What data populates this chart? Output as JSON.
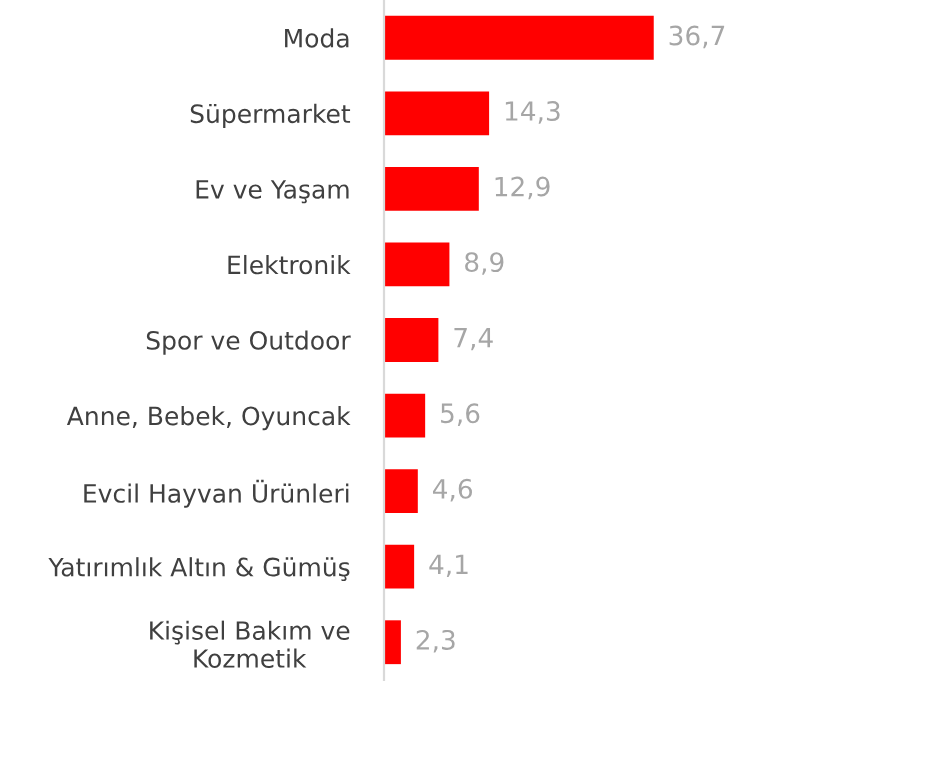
{
  "chart_data": {
    "type": "bar",
    "orientation": "horizontal",
    "categories": [
      "Moda",
      "Süpermarket",
      "Ev ve Yaşam",
      "Elektronik",
      "Spor ve Outdoor",
      "Anne, Bebek, Oyuncak",
      "Evcil Hayvan Ürünleri",
      "Yatırımlık Altın & Gümüş",
      "Kişisel Bakım ve\nKozmetik"
    ],
    "values": [
      36.7,
      14.3,
      12.9,
      8.9,
      7.4,
      5.6,
      4.6,
      4.1,
      2.3
    ],
    "value_labels": [
      "36,7",
      "14,3",
      "12,9",
      "8,9",
      "7,4",
      "5,6",
      "4,6",
      "4,1",
      "2,3"
    ],
    "color": "#ff0000",
    "grid": false,
    "legend": false
  }
}
